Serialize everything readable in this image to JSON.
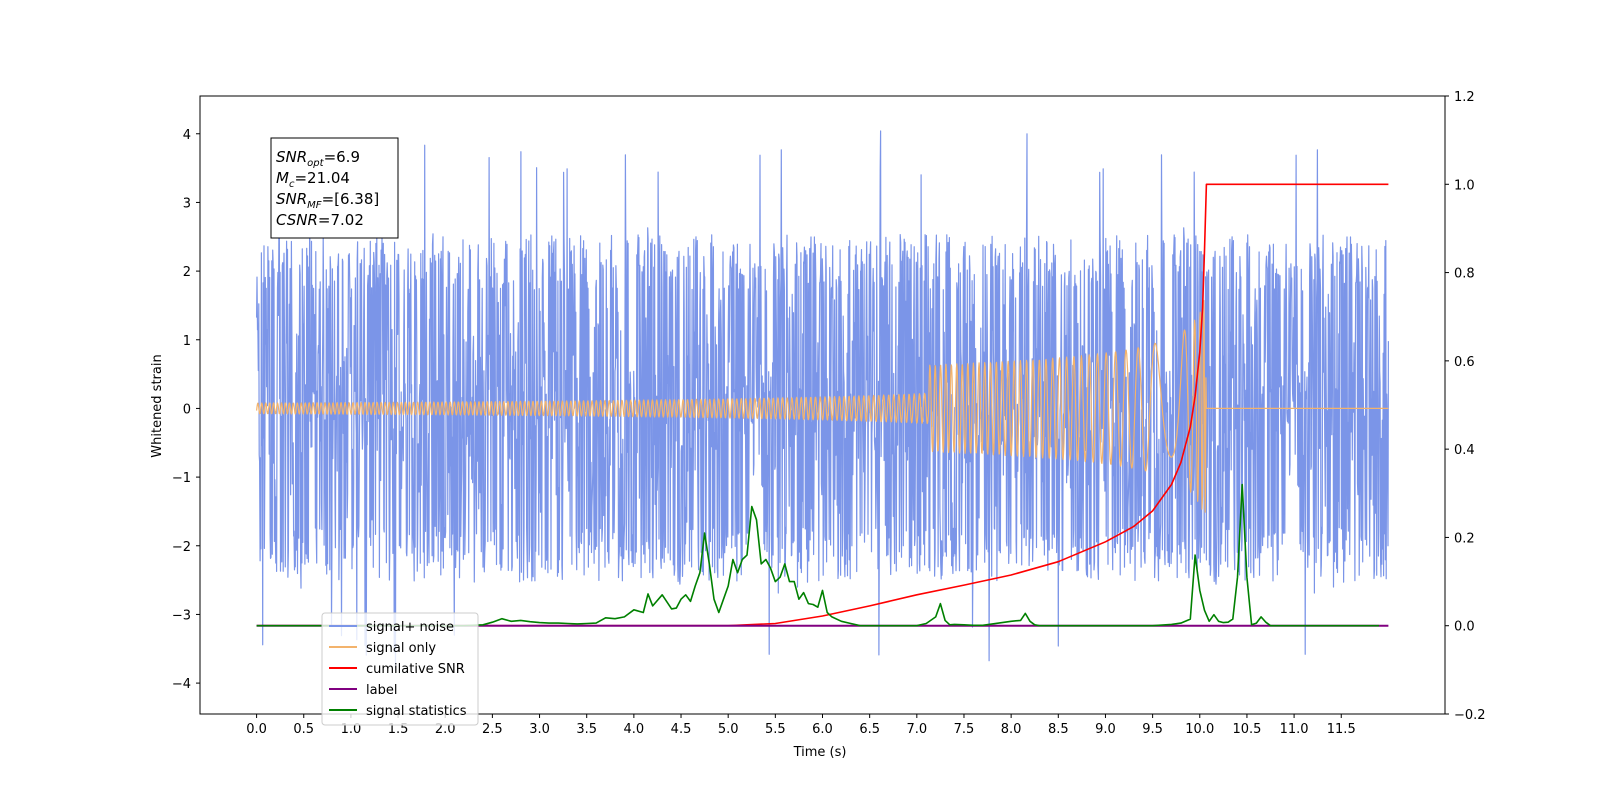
{
  "chart_data": {
    "type": "line",
    "xlabel": "Time (s)",
    "ylabel": "Whitened strain",
    "xlim": [
      -0.6,
      12.6
    ],
    "ylim": [
      -4.45,
      4.55
    ],
    "y2lim": [
      -0.2,
      1.2
    ],
    "xticks": [
      "0.0",
      "0.5",
      "1.0",
      "1.5",
      "2.0",
      "2.5",
      "3.0",
      "3.5",
      "4.0",
      "4.5",
      "5.0",
      "5.5",
      "6.0",
      "6.5",
      "7.0",
      "7.5",
      "8.0",
      "8.5",
      "9.0",
      "9.5",
      "10.0",
      "10.5",
      "11.0",
      "11.5"
    ],
    "yticks": [
      "4",
      "3",
      "2",
      "1",
      "0",
      "−1",
      "−2",
      "−3",
      "−4"
    ],
    "y2ticks": [
      "1.2",
      "1.0",
      "0.8",
      "0.6",
      "0.4",
      "0.2",
      "0.0",
      "−0.2"
    ],
    "legend_position": "lower-left",
    "annotation": {
      "lines": [
        {
          "main": "SNR",
          "sub": "opt",
          "rest": "=6.9"
        },
        {
          "main": "M",
          "sub": "c",
          "rest": "=21.04"
        },
        {
          "main": "SNR",
          "sub": "MF",
          "rest": "=[6.38]"
        },
        {
          "main": "CSNR",
          "sub": "",
          "rest": "=7.02"
        }
      ]
    },
    "series": [
      {
        "name": "signal+ noise",
        "color": "#7b95e8",
        "axis": "left",
        "noise": {
          "t_start": 0.0,
          "t_end": 12.0,
          "typical_amplitude": 2.3,
          "min": -3.8,
          "max": 4.1
        }
      },
      {
        "name": "signal only",
        "color": "#f3b36c",
        "axis": "left",
        "chirp": {
          "t_start": 0.0,
          "t_merge": 10.07,
          "t_end": 12.0,
          "peak_amplitude": 1.6
        }
      },
      {
        "name": "cumilative SNR",
        "color": "#ff0000",
        "axis": "right",
        "x": [
          0.0,
          5.0,
          5.5,
          6.0,
          6.5,
          7.0,
          7.5,
          8.0,
          8.5,
          9.0,
          9.3,
          9.5,
          9.7,
          9.8,
          9.9,
          9.95,
          10.0,
          10.03,
          10.05,
          10.07,
          12.0
        ],
        "values": [
          0.0,
          0.0,
          0.005,
          0.022,
          0.045,
          0.07,
          0.092,
          0.115,
          0.145,
          0.19,
          0.225,
          0.26,
          0.32,
          0.37,
          0.45,
          0.52,
          0.62,
          0.72,
          0.85,
          1.0,
          1.0
        ]
      },
      {
        "name": "label",
        "color": "#800080",
        "axis": "right",
        "x": [
          0.0,
          12.0
        ],
        "values": [
          0.0,
          0.0
        ]
      },
      {
        "name": "signal statistics",
        "color": "#008000",
        "axis": "right",
        "x": [
          0.0,
          2.2,
          2.4,
          2.5,
          2.6,
          2.7,
          2.8,
          2.9,
          3.0,
          3.1,
          3.2,
          3.3,
          3.4,
          3.5,
          3.6,
          3.7,
          3.8,
          3.9,
          4.0,
          4.1,
          4.15,
          4.2,
          4.3,
          4.4,
          4.45,
          4.5,
          4.55,
          4.6,
          4.65,
          4.7,
          4.75,
          4.8,
          4.85,
          4.9,
          4.95,
          5.0,
          5.05,
          5.1,
          5.15,
          5.2,
          5.25,
          5.3,
          5.35,
          5.4,
          5.45,
          5.5,
          5.55,
          5.6,
          5.65,
          5.7,
          5.75,
          5.8,
          5.85,
          5.9,
          5.95,
          6.0,
          6.05,
          6.1,
          6.2,
          6.3,
          6.4,
          6.5,
          6.6,
          7.0,
          7.1,
          7.2,
          7.25,
          7.3,
          7.35,
          7.4,
          7.5,
          7.6,
          7.7,
          8.0,
          8.1,
          8.15,
          8.2,
          8.25,
          8.3,
          8.4,
          9.5,
          9.7,
          9.8,
          9.9,
          9.95,
          10.0,
          10.05,
          10.1,
          10.15,
          10.2,
          10.25,
          10.3,
          10.35,
          10.4,
          10.45,
          10.5,
          10.55,
          10.6,
          10.65,
          10.7,
          10.75,
          10.8,
          10.9,
          11.0,
          11.9
        ],
        "values": [
          0.0,
          0.0,
          0.002,
          0.008,
          0.016,
          0.01,
          0.012,
          0.009,
          0.007,
          0.006,
          0.006,
          0.005,
          0.004,
          0.005,
          0.006,
          0.018,
          0.016,
          0.02,
          0.036,
          0.03,
          0.072,
          0.045,
          0.07,
          0.038,
          0.04,
          0.06,
          0.07,
          0.055,
          0.09,
          0.12,
          0.21,
          0.14,
          0.06,
          0.03,
          0.06,
          0.09,
          0.15,
          0.12,
          0.15,
          0.16,
          0.27,
          0.24,
          0.14,
          0.15,
          0.13,
          0.1,
          0.11,
          0.14,
          0.1,
          0.1,
          0.06,
          0.075,
          0.05,
          0.048,
          0.042,
          0.08,
          0.03,
          0.02,
          0.01,
          0.005,
          0.0,
          0.0,
          0.0,
          0.0,
          0.005,
          0.02,
          0.05,
          0.012,
          0.002,
          0.003,
          0.002,
          0.001,
          0.001,
          0.01,
          0.012,
          0.028,
          0.01,
          0.002,
          0.0,
          0.0,
          0.0,
          0.003,
          0.006,
          0.015,
          0.16,
          0.08,
          0.035,
          0.01,
          0.025,
          0.01,
          0.007,
          0.008,
          0.015,
          0.11,
          0.32,
          0.11,
          0.002,
          0.006,
          0.02,
          0.008,
          0.0,
          0.0,
          0.0,
          0.0,
          0.0
        ]
      }
    ]
  }
}
